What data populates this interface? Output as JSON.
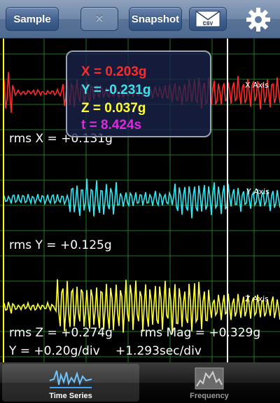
{
  "toolbar": {
    "sample_label": "Sample",
    "clear_label": "✕",
    "snapshot_label": "Snapshot",
    "csv_label": "CSV",
    "settings_icon": "gear-icon"
  },
  "readout": {
    "x": "X = 0.203g",
    "y": "Y = -0.231g",
    "z": "Z = 0.037g",
    "t": "t = 8.424s",
    "x_color": "#ff2a2a",
    "y_color": "#33e6f0",
    "z_color": "#ffff33",
    "t_color": "#e02ae0"
  },
  "plot": {
    "x_axis_label": "X Axis",
    "y_axis_label": "Y Axis",
    "z_axis_label": "Z Axis",
    "rms_x": "rms X = +0.131g",
    "rms_y": "rms Y = +0.125g",
    "rms_z": "rms Z = +0.274g",
    "rms_mag": "rms Mag = +0.329g",
    "y_scale": "Y = +0.20g/div",
    "time_scale": "+1.293sec/div",
    "grid_color": "#1f7a1f",
    "x_trace_color": "#ff2a2a",
    "y_trace_color": "#33e6f0",
    "z_trace_color": "#ffff33"
  },
  "tabs": [
    {
      "label": "Time Series",
      "active": true
    },
    {
      "label": "Frequency",
      "active": false
    }
  ]
}
